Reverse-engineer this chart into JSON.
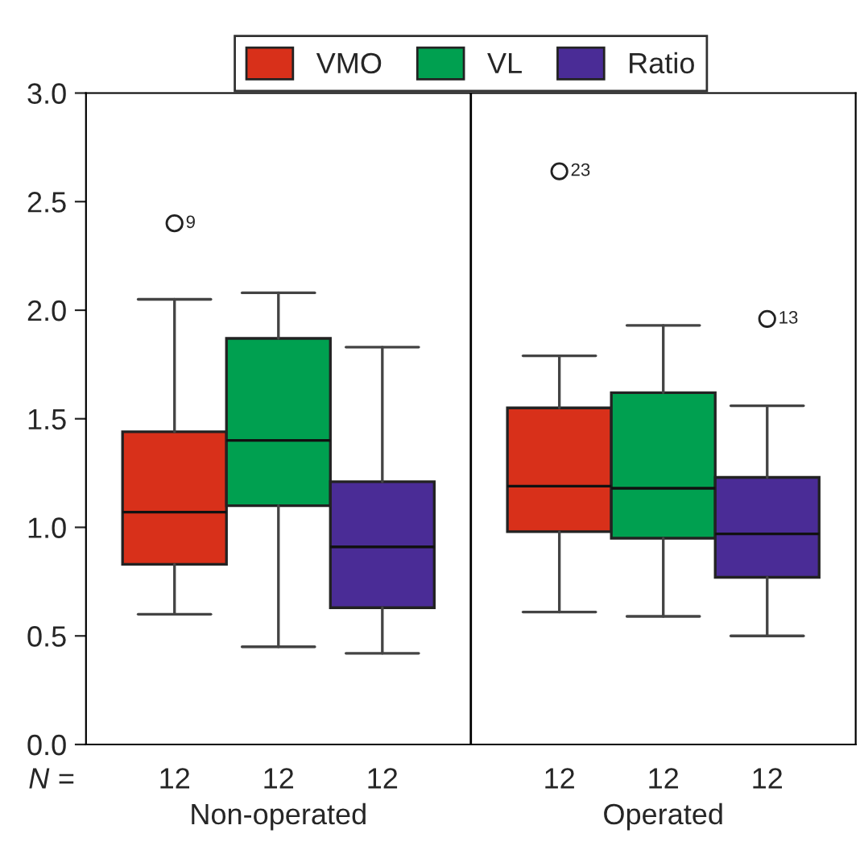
{
  "chart_data": {
    "type": "box",
    "categories": [
      "Non-operated",
      "Operated"
    ],
    "series": [
      {
        "name": "VMO",
        "color": "#d8301a",
        "value_labels": [
          "12",
          "12"
        ],
        "boxes": [
          {
            "low": 0.6,
            "q1": 0.83,
            "median": 1.07,
            "q3": 1.44,
            "high": 2.05,
            "outliers": [
              2.4
            ]
          },
          {
            "low": 0.61,
            "q1": 0.98,
            "median": 1.19,
            "q3": 1.55,
            "high": 1.79,
            "outliers": [
              2.64
            ]
          }
        ]
      },
      {
        "name": "VL",
        "color": "#00a050",
        "value_labels": [
          "12",
          "12"
        ],
        "boxes": [
          {
            "low": 0.45,
            "q1": 1.1,
            "median": 1.4,
            "q3": 1.87,
            "high": 2.08
          },
          {
            "low": 0.59,
            "q1": 0.95,
            "median": 1.18,
            "q3": 1.62,
            "high": 1.93
          }
        ]
      },
      {
        "name": "Ratio",
        "color": "#4a2c96",
        "value_labels": [
          "12",
          "12"
        ],
        "boxes": [
          {
            "low": 0.42,
            "q1": 0.63,
            "median": 0.91,
            "q3": 1.21,
            "high": 1.83
          },
          {
            "low": 0.5,
            "q1": 0.77,
            "median": 0.97,
            "q3": 1.23,
            "high": 1.56,
            "outliers": [
              1.96
            ]
          }
        ]
      }
    ],
    "annotations": [
      "9",
      "23",
      "13",
      "N ="
    ],
    "ylim": [
      0.0,
      3.0
    ],
    "yticks": [
      {
        "value": 0.0,
        "label": "0.0"
      },
      {
        "value": 0.5,
        "label": "0.5"
      },
      {
        "value": 1.0,
        "label": "1.0"
      },
      {
        "value": 1.5,
        "label": "1.5"
      },
      {
        "value": 2.0,
        "label": "2.0"
      },
      {
        "value": 2.5,
        "label": "2.5"
      },
      {
        "value": 3.0,
        "label": "3.0"
      }
    ],
    "legend": "top"
  }
}
